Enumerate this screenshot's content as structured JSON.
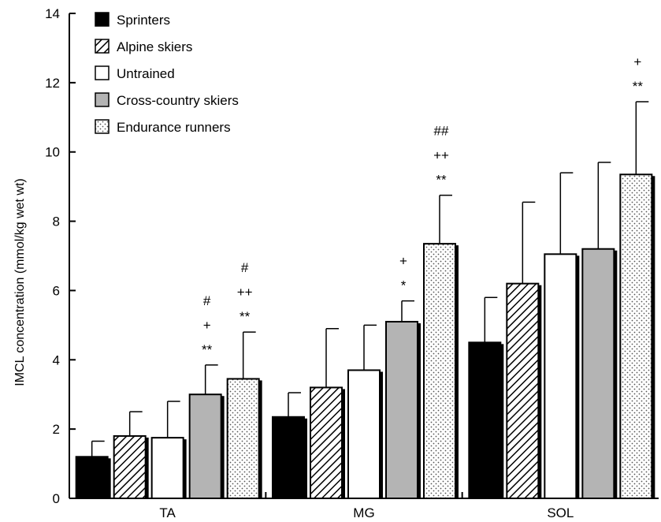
{
  "chart_data": {
    "type": "bar",
    "ylabel": "IMCL concentration (mmol/kg wet wt)",
    "ylim": [
      0,
      14
    ],
    "yticks": [
      0,
      2,
      4,
      6,
      8,
      10,
      12,
      14
    ],
    "categories": [
      "TA",
      "MG",
      "SOL"
    ],
    "legend_position": "top-left",
    "grid": false,
    "series": [
      {
        "name": "Sprinters",
        "pattern": "solid-black",
        "values": [
          1.2,
          2.35,
          4.5
        ],
        "errors": [
          0.45,
          0.7,
          1.3
        ]
      },
      {
        "name": "Alpine skiers",
        "pattern": "diagonal-hatch",
        "values": [
          1.8,
          3.2,
          6.2
        ],
        "errors": [
          0.7,
          1.7,
          2.35
        ]
      },
      {
        "name": "Untrained",
        "pattern": "white",
        "values": [
          1.75,
          3.7,
          7.05
        ],
        "errors": [
          1.05,
          1.3,
          2.35
        ]
      },
      {
        "name": "Cross-country skiers",
        "pattern": "gray",
        "values": [
          3.0,
          5.1,
          7.2
        ],
        "errors": [
          0.85,
          0.6,
          2.5
        ]
      },
      {
        "name": "Endurance runners",
        "pattern": "dotted",
        "values": [
          3.45,
          7.35,
          9.35
        ],
        "errors": [
          1.35,
          1.4,
          2.1
        ]
      }
    ],
    "annotations": [
      {
        "category": "TA",
        "series": "Cross-country skiers",
        "lines": [
          "#",
          "+",
          "**"
        ]
      },
      {
        "category": "TA",
        "series": "Endurance runners",
        "lines": [
          "#",
          "++",
          "**"
        ]
      },
      {
        "category": "MG",
        "series": "Cross-country skiers",
        "lines": [
          "+",
          "*"
        ]
      },
      {
        "category": "MG",
        "series": "Endurance runners",
        "lines": [
          "##",
          "++",
          "**"
        ]
      },
      {
        "category": "SOL",
        "series": "Endurance runners",
        "lines": [
          "+",
          "**"
        ]
      }
    ]
  }
}
